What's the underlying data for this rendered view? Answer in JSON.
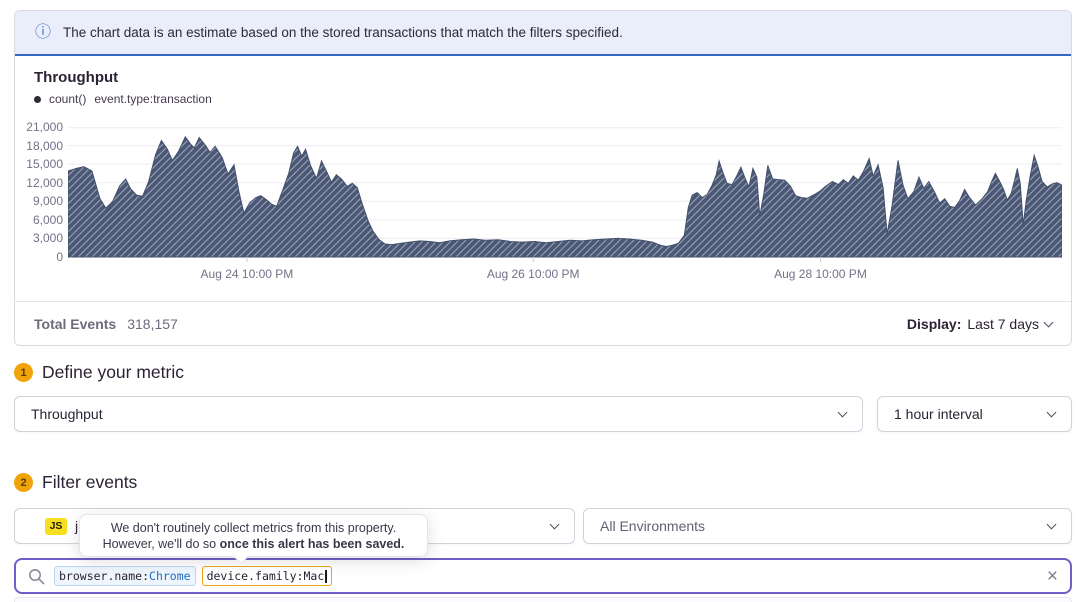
{
  "banner": {
    "icon_glyph": "ⓘ",
    "text": "The chart data is an estimate based on the stored transactions that match the filters specified."
  },
  "chart_panel": {
    "title": "Throughput",
    "legend": {
      "aggregate": "count()",
      "query": "event.type:transaction"
    },
    "footer": {
      "total_label": "Total Events",
      "total_value": "318,157",
      "display_label": "Display:",
      "display_value": "Last 7 days"
    }
  },
  "chart_data": {
    "type": "area",
    "title": "Throughput",
    "ylim": [
      0,
      21000
    ],
    "y_ticks": [
      0,
      3000,
      6000,
      9000,
      12000,
      15000,
      18000,
      21000
    ],
    "x_ticks": [
      {
        "label": "Aug 24 10:00 PM",
        "pos": 0.18
      },
      {
        "label": "Aug 26 10:00 PM",
        "pos": 0.468
      },
      {
        "label": "Aug 28 10:00 PM",
        "pos": 0.757
      }
    ],
    "grid": "horizontal",
    "legend_position": "top-left",
    "fill_style": "diagonal-hatch",
    "colors": {
      "area": "#4b5875",
      "hatch_line": "#9aa2b7",
      "axis_label": "#766f87",
      "gridline": "#eeedf2"
    },
    "series": [
      {
        "name": "count() event.type:transaction",
        "points": [
          [
            0,
            13900
          ],
          [
            0.008,
            14300
          ],
          [
            0.016,
            14600
          ],
          [
            0.024,
            13900
          ],
          [
            0.032,
            9500
          ],
          [
            0.038,
            7900
          ],
          [
            0.045,
            9000
          ],
          [
            0.052,
            11500
          ],
          [
            0.058,
            12600
          ],
          [
            0.063,
            11000
          ],
          [
            0.069,
            10000
          ],
          [
            0.075,
            9800
          ],
          [
            0.081,
            12100
          ],
          [
            0.088,
            16500
          ],
          [
            0.094,
            18800
          ],
          [
            0.1,
            17400
          ],
          [
            0.105,
            15600
          ],
          [
            0.111,
            17000
          ],
          [
            0.118,
            19400
          ],
          [
            0.123,
            18300
          ],
          [
            0.127,
            17600
          ],
          [
            0.132,
            19300
          ],
          [
            0.138,
            18100
          ],
          [
            0.143,
            16900
          ],
          [
            0.148,
            17900
          ],
          [
            0.155,
            16100
          ],
          [
            0.161,
            13400
          ],
          [
            0.167,
            14900
          ],
          [
            0.172,
            10500
          ],
          [
            0.177,
            7100
          ],
          [
            0.183,
            8800
          ],
          [
            0.189,
            9600
          ],
          [
            0.194,
            9900
          ],
          [
            0.2,
            9200
          ],
          [
            0.205,
            8500
          ],
          [
            0.21,
            8200
          ],
          [
            0.216,
            10800
          ],
          [
            0.222,
            13500
          ],
          [
            0.227,
            16800
          ],
          [
            0.231,
            17900
          ],
          [
            0.235,
            16300
          ],
          [
            0.239,
            17400
          ],
          [
            0.244,
            14800
          ],
          [
            0.25,
            12700
          ],
          [
            0.255,
            15500
          ],
          [
            0.26,
            13900
          ],
          [
            0.265,
            12100
          ],
          [
            0.27,
            13300
          ],
          [
            0.275,
            12600
          ],
          [
            0.281,
            11400
          ],
          [
            0.286,
            11900
          ],
          [
            0.291,
            11200
          ],
          [
            0.296,
            8600
          ],
          [
            0.302,
            5800
          ],
          [
            0.307,
            4100
          ],
          [
            0.313,
            2800
          ],
          [
            0.319,
            2100
          ],
          [
            0.326,
            2000
          ],
          [
            0.334,
            2200
          ],
          [
            0.344,
            2400
          ],
          [
            0.354,
            2600
          ],
          [
            0.364,
            2500
          ],
          [
            0.374,
            2300
          ],
          [
            0.384,
            2600
          ],
          [
            0.396,
            2800
          ],
          [
            0.408,
            2900
          ],
          [
            0.42,
            2700
          ],
          [
            0.433,
            2800
          ],
          [
            0.445,
            2500
          ],
          [
            0.457,
            2400
          ],
          [
            0.469,
            2500
          ],
          [
            0.481,
            2300
          ],
          [
            0.493,
            2500
          ],
          [
            0.505,
            2700
          ],
          [
            0.517,
            2600
          ],
          [
            0.529,
            2800
          ],
          [
            0.541,
            2900
          ],
          [
            0.553,
            3000
          ],
          [
            0.565,
            2900
          ],
          [
            0.577,
            2700
          ],
          [
            0.588,
            2400
          ],
          [
            0.596,
            1900
          ],
          [
            0.602,
            1700
          ],
          [
            0.608,
            1900
          ],
          [
            0.614,
            2200
          ],
          [
            0.62,
            3500
          ],
          [
            0.624,
            8000
          ],
          [
            0.628,
            10000
          ],
          [
            0.633,
            10400
          ],
          [
            0.638,
            9600
          ],
          [
            0.643,
            10100
          ],
          [
            0.648,
            11600
          ],
          [
            0.652,
            13200
          ],
          [
            0.655,
            15500
          ],
          [
            0.659,
            13600
          ],
          [
            0.663,
            11900
          ],
          [
            0.668,
            11700
          ],
          [
            0.673,
            13200
          ],
          [
            0.677,
            14500
          ],
          [
            0.681,
            12800
          ],
          [
            0.685,
            11300
          ],
          [
            0.689,
            14300
          ],
          [
            0.693,
            12900
          ],
          [
            0.696,
            6600
          ],
          [
            0.7,
            10200
          ],
          [
            0.704,
            14800
          ],
          [
            0.709,
            12600
          ],
          [
            0.715,
            12500
          ],
          [
            0.721,
            12400
          ],
          [
            0.727,
            11400
          ],
          [
            0.732,
            9900
          ],
          [
            0.738,
            9600
          ],
          [
            0.744,
            9500
          ],
          [
            0.751,
            10100
          ],
          [
            0.757,
            10700
          ],
          [
            0.762,
            11400
          ],
          [
            0.769,
            12200
          ],
          [
            0.775,
            11700
          ],
          [
            0.78,
            12500
          ],
          [
            0.785,
            11900
          ],
          [
            0.79,
            13100
          ],
          [
            0.795,
            12400
          ],
          [
            0.8,
            13700
          ],
          [
            0.806,
            15900
          ],
          [
            0.81,
            13100
          ],
          [
            0.815,
            14900
          ],
          [
            0.82,
            11200
          ],
          [
            0.824,
            3700
          ],
          [
            0.829,
            8200
          ],
          [
            0.835,
            15600
          ],
          [
            0.84,
            11600
          ],
          [
            0.845,
            9400
          ],
          [
            0.851,
            10600
          ],
          [
            0.856,
            12900
          ],
          [
            0.861,
            11100
          ],
          [
            0.866,
            12200
          ],
          [
            0.872,
            10400
          ],
          [
            0.877,
            8700
          ],
          [
            0.882,
            9400
          ],
          [
            0.887,
            8200
          ],
          [
            0.892,
            8000
          ],
          [
            0.897,
            9100
          ],
          [
            0.902,
            10900
          ],
          [
            0.907,
            9600
          ],
          [
            0.913,
            8400
          ],
          [
            0.919,
            9300
          ],
          [
            0.925,
            10500
          ],
          [
            0.929,
            12100
          ],
          [
            0.933,
            13500
          ],
          [
            0.937,
            12300
          ],
          [
            0.941,
            11000
          ],
          [
            0.945,
            9200
          ],
          [
            0.949,
            10300
          ],
          [
            0.952,
            12200
          ],
          [
            0.955,
            14300
          ],
          [
            0.958,
            11800
          ],
          [
            0.961,
            5200
          ],
          [
            0.964,
            9100
          ],
          [
            0.968,
            13100
          ],
          [
            0.972,
            16400
          ],
          [
            0.976,
            14500
          ],
          [
            0.98,
            12200
          ],
          [
            0.985,
            11300
          ],
          [
            0.99,
            11800
          ],
          [
            0.995,
            12000
          ],
          [
            1,
            11600
          ]
        ]
      }
    ]
  },
  "step1": {
    "number": "1",
    "title": "Define your metric",
    "metric_value": "Throughput",
    "interval_value": "1 hour interval"
  },
  "step2": {
    "number": "2",
    "title": "Filter events",
    "project_badge": "JS",
    "project_name": "j",
    "environment_value": "All Environments"
  },
  "tooltip": {
    "line1": "We don't routinely collect metrics from this property.",
    "line2_prefix": "However, we'll do so ",
    "line2_bold": "once this alert has been saved."
  },
  "search": {
    "tokens": [
      {
        "key": "browser.name:",
        "value": "Chrome"
      },
      {
        "key": "device.family:",
        "value": "Mac"
      }
    ],
    "clear_glyph": "×"
  }
}
